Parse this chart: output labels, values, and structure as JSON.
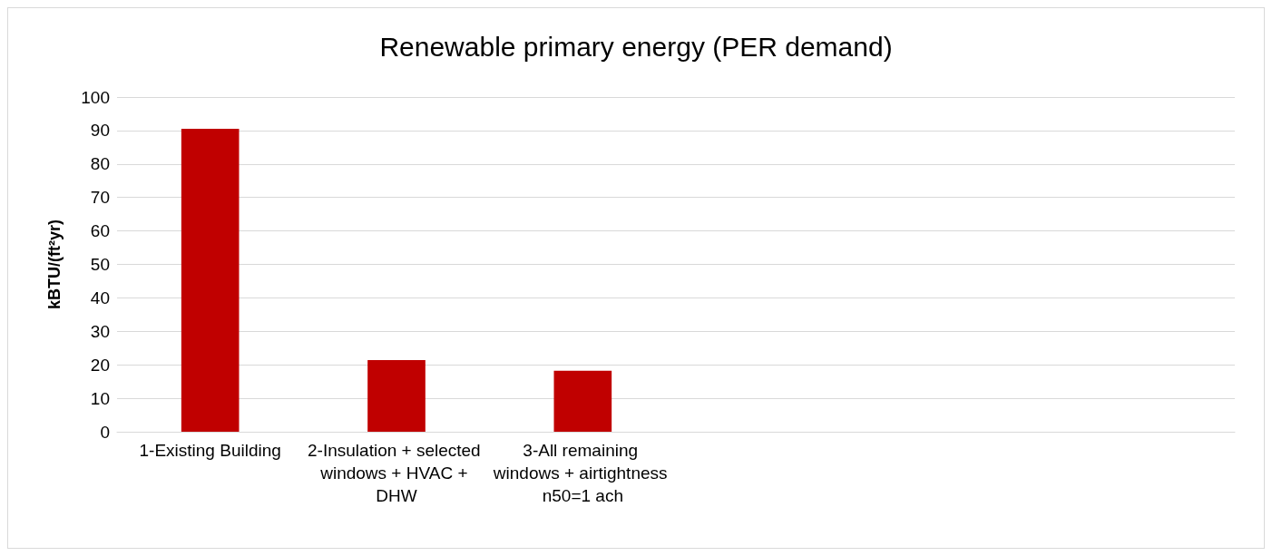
{
  "chart_data": {
    "type": "bar",
    "title": "Renewable primary energy (PER demand)",
    "ylabel": "kBTU/(ft²yr)",
    "categories": [
      "1-Existing Building",
      "2-Insulation + selected windows + HVAC + DHW",
      "3-All remaining windows + airtightness n50=1 ach",
      null,
      null,
      null
    ],
    "values": [
      90.5,
      21.4,
      18.2,
      null,
      null,
      null
    ],
    "color": "#c00000",
    "ylim": [
      0,
      100
    ],
    "yticks": [
      0,
      10,
      20,
      30,
      40,
      50,
      60,
      70,
      80,
      90,
      100
    ],
    "grid": "y"
  }
}
